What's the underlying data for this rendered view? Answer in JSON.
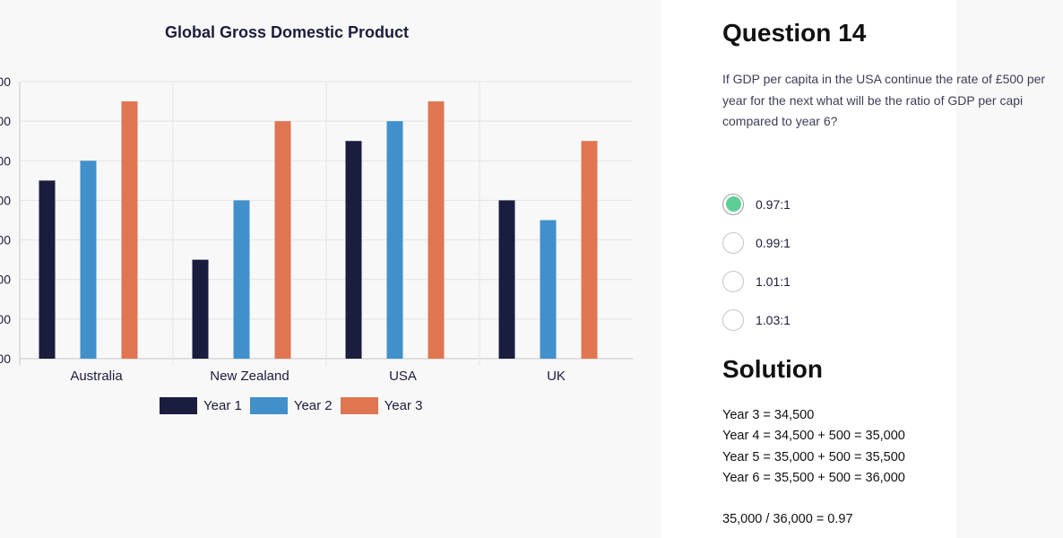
{
  "chart_data": {
    "type": "bar",
    "title": "Global Gross Domestic Product",
    "categories": [
      "Australia",
      "New Zealand",
      "USA",
      "UK"
    ],
    "series": [
      {
        "name": "Year 1",
        "color": "#1b1d3f",
        "values": [
          45,
          25,
          55,
          40
        ]
      },
      {
        "name": "Year 2",
        "color": "#4190cb",
        "values": [
          50,
          40,
          60,
          35
        ]
      },
      {
        "name": "Year 3",
        "color": "#e07552",
        "values": [
          65,
          60,
          65,
          55
        ]
      }
    ],
    "ylim": [
      0,
      70
    ],
    "y_ticks": [
      0,
      10,
      20,
      30,
      40,
      50,
      60,
      70
    ],
    "y_tick_labels": [
      "00",
      "00",
      "00",
      "00",
      "00",
      "00",
      "00",
      "00"
    ],
    "grid": true,
    "legend": "bottom",
    "xlabel": "",
    "ylabel": ""
  },
  "question": {
    "title": "Question 14",
    "text": "If GDP per capita in the USA continue the rate of £500 per year for the next what will be the ratio of GDP per capi compared to year 6?",
    "options": [
      {
        "label": "0.97:1",
        "selected": true
      },
      {
        "label": "0.99:1",
        "selected": false
      },
      {
        "label": "1.01:1",
        "selected": false
      },
      {
        "label": "1.03:1",
        "selected": false
      }
    ]
  },
  "solution": {
    "title": "Solution",
    "lines": [
      "Year 3 = 34,500",
      "Year 4 = 34,500 + 500 = 35,000",
      "Year 5 = 35,000 + 500 = 35,500",
      "Year 6 = 35,500 + 500 = 36,000"
    ],
    "result": "35,000 / 36,000 = 0.97"
  }
}
